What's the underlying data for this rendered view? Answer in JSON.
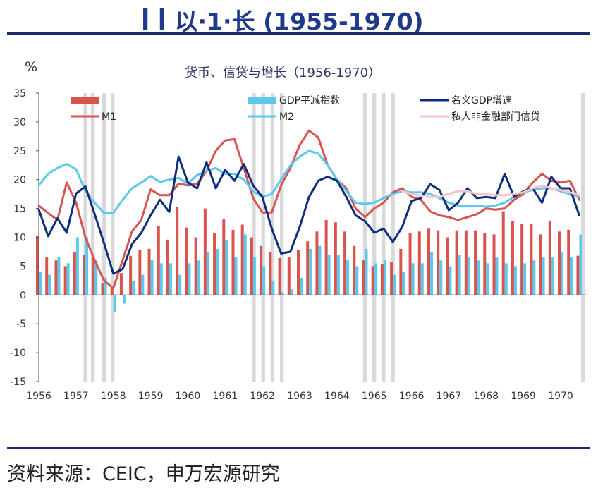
{
  "header": {
    "title_text": "ꟾ ꟾ 以·1·长",
    "title_years": "(1955-1970)"
  },
  "chart_data": {
    "type": "bar",
    "title": "货币、信贷与增长（1956-1970）",
    "ylabel": "%",
    "xlabel": "",
    "ylim": [
      -15,
      35
    ],
    "yticks": [
      35,
      30,
      25,
      20,
      15,
      10,
      5,
      0,
      -5,
      -10,
      -15
    ],
    "x_tick_labels": [
      "1956",
      "1957",
      "1958",
      "1959",
      "1960",
      "1961",
      "1962",
      "1963",
      "1964",
      "1965",
      "1966",
      "1967",
      "1968",
      "1969",
      "1970"
    ],
    "x_range": [
      1956.0,
      1970.7
    ],
    "grid": false,
    "legend_placement": "top",
    "colors": {
      "red": "#d9534f",
      "cyan": "#5bc8ee",
      "navy": "#0d2e7c",
      "pink": "#f6c4c8",
      "shade": "#d9d9d9"
    },
    "shaded_periods": [
      [
        1957.2,
        1957.3
      ],
      [
        1957.4,
        1957.5
      ],
      [
        1957.7,
        1957.8
      ],
      [
        1957.93,
        1958.03
      ],
      [
        1961.72,
        1961.82
      ],
      [
        1961.97,
        1962.07
      ],
      [
        1962.22,
        1962.32
      ],
      [
        1962.47,
        1962.57
      ],
      [
        1964.7,
        1964.8
      ],
      [
        1964.95,
        1965.05
      ],
      [
        1965.2,
        1965.3
      ],
      [
        1965.45,
        1965.55
      ],
      [
        1970.55,
        1970.65
      ]
    ],
    "series": [
      {
        "name": "",
        "kind": "bar",
        "color": "#d9534f",
        "x": [
          1956.0,
          1956.25,
          1956.5,
          1956.75,
          1957.0,
          1957.25,
          1957.5,
          1957.75,
          1958.0,
          1958.25,
          1958.5,
          1958.75,
          1959.0,
          1959.25,
          1959.5,
          1959.75,
          1960.0,
          1960.25,
          1960.5,
          1960.75,
          1961.0,
          1961.25,
          1961.5,
          1961.75,
          1962.0,
          1962.25,
          1962.5,
          1962.75,
          1963.0,
          1963.25,
          1963.5,
          1963.75,
          1964.0,
          1964.25,
          1964.5,
          1964.75,
          1965.0,
          1965.25,
          1965.5,
          1965.75,
          1966.0,
          1966.25,
          1966.5,
          1966.75,
          1967.0,
          1967.25,
          1967.5,
          1967.75,
          1968.0,
          1968.25,
          1968.5,
          1968.75,
          1969.0,
          1969.25,
          1969.5,
          1969.75,
          1970.0,
          1970.25,
          1970.5
        ],
        "values": [
          10.2,
          6.5,
          6.0,
          5.0,
          7.4,
          7.0,
          6.5,
          2.0,
          1.4,
          3.8,
          6.8,
          7.8,
          8.0,
          12.0,
          9.6,
          15.3,
          11.7,
          10.0,
          15.0,
          10.8,
          13.1,
          11.3,
          12.2,
          10.0,
          8.5,
          7.5,
          6.4,
          6.5,
          7.8,
          9.3,
          11.0,
          13.0,
          12.6,
          11.0,
          8.5,
          6.0,
          5.0,
          5.4,
          5.7,
          8.0,
          10.8,
          11.0,
          11.5,
          11.2,
          10.0,
          11.2,
          11.2,
          11.2,
          10.8,
          10.5,
          14.5,
          12.8,
          12.3,
          12.3,
          10.5,
          12.8,
          11.0,
          11.3,
          6.8
        ]
      },
      {
        "name": "GDP平减指数",
        "kind": "bar",
        "color": "#5bc8ee",
        "x": [
          1956.0,
          1956.25,
          1956.5,
          1956.75,
          1957.0,
          1957.25,
          1957.5,
          1957.75,
          1958.0,
          1958.25,
          1958.5,
          1958.75,
          1959.0,
          1959.25,
          1959.5,
          1959.75,
          1960.0,
          1960.25,
          1960.5,
          1960.75,
          1961.0,
          1961.25,
          1961.5,
          1961.75,
          1962.0,
          1962.25,
          1962.5,
          1962.75,
          1963.0,
          1963.25,
          1963.5,
          1963.75,
          1964.0,
          1964.25,
          1964.5,
          1964.75,
          1965.0,
          1965.25,
          1965.5,
          1965.75,
          1966.0,
          1966.25,
          1966.5,
          1966.75,
          1967.0,
          1967.25,
          1967.5,
          1967.75,
          1968.0,
          1968.25,
          1968.5,
          1968.75,
          1969.0,
          1969.25,
          1969.5,
          1969.75,
          1970.0,
          1970.25,
          1970.5
        ],
        "values": [
          4.0,
          3.5,
          6.5,
          5.5,
          10.0,
          10.0,
          6.0,
          3.0,
          -3.0,
          -1.5,
          2.5,
          3.5,
          6.0,
          5.5,
          5.5,
          3.5,
          5.5,
          6.0,
          7.5,
          8.0,
          9.5,
          6.5,
          10.5,
          6.5,
          5.0,
          2.5,
          0.5,
          1.0,
          3.0,
          8.0,
          8.5,
          7.0,
          7.0,
          6.0,
          5.0,
          8.0,
          5.5,
          6.0,
          3.5,
          4.0,
          5.5,
          5.5,
          7.5,
          6.0,
          5.0,
          7.0,
          6.5,
          6.0,
          5.5,
          6.5,
          5.5,
          5.0,
          5.5,
          6.0,
          6.5,
          6.5,
          7.5,
          6.5,
          10.5
        ]
      },
      {
        "name": "M1",
        "kind": "line",
        "color": "#d9534f",
        "x": [
          1956.0,
          1956.25,
          1956.5,
          1956.75,
          1957.0,
          1957.25,
          1957.5,
          1957.75,
          1958.0,
          1958.25,
          1958.5,
          1958.75,
          1959.0,
          1959.25,
          1959.5,
          1959.75,
          1960.0,
          1960.25,
          1960.5,
          1960.75,
          1961.0,
          1961.25,
          1961.5,
          1961.75,
          1962.0,
          1962.25,
          1962.5,
          1962.75,
          1963.0,
          1963.25,
          1963.5,
          1963.75,
          1964.0,
          1964.25,
          1964.5,
          1964.75,
          1965.0,
          1965.25,
          1965.5,
          1965.75,
          1966.0,
          1966.25,
          1966.5,
          1966.75,
          1967.0,
          1967.25,
          1967.5,
          1967.75,
          1968.0,
          1968.25,
          1968.5,
          1968.75,
          1969.0,
          1969.25,
          1969.5,
          1969.75,
          1970.0,
          1970.25,
          1970.5
        ],
        "values": [
          15.5,
          14.2,
          13.0,
          19.5,
          16.0,
          10.0,
          6.0,
          2.5,
          1.2,
          6.0,
          11.0,
          13.0,
          18.3,
          17.3,
          17.3,
          19.3,
          19.0,
          19.3,
          21.5,
          25.0,
          26.8,
          27.0,
          22.0,
          16.8,
          14.3,
          14.3,
          19.0,
          22.0,
          26.0,
          28.5,
          27.3,
          22.5,
          20.0,
          18.5,
          15.0,
          13.5,
          15.0,
          16.0,
          17.8,
          18.5,
          17.0,
          16.5,
          14.5,
          13.8,
          13.5,
          13.0,
          13.5,
          14.0,
          15.0,
          14.8,
          15.0,
          16.5,
          17.5,
          19.5,
          21.0,
          19.8,
          19.5,
          19.8,
          16.5
        ]
      },
      {
        "name": "M2",
        "kind": "line",
        "color": "#5bc8ee",
        "x": [
          1956.0,
          1956.25,
          1956.5,
          1956.75,
          1957.0,
          1957.25,
          1957.5,
          1957.75,
          1958.0,
          1958.25,
          1958.5,
          1958.75,
          1959.0,
          1959.25,
          1959.5,
          1959.75,
          1960.0,
          1960.25,
          1960.5,
          1960.75,
          1961.0,
          1961.25,
          1961.5,
          1961.75,
          1962.0,
          1962.25,
          1962.5,
          1962.75,
          1963.0,
          1963.25,
          1963.5,
          1963.75,
          1964.0,
          1964.25,
          1964.5,
          1964.75,
          1965.0,
          1965.25,
          1965.5,
          1965.75,
          1966.0,
          1966.25,
          1966.5,
          1966.75,
          1967.0,
          1967.25,
          1967.5,
          1967.75,
          1968.0,
          1968.25,
          1968.5,
          1968.75,
          1969.0,
          1969.25,
          1969.5,
          1969.75,
          1970.0,
          1970.25,
          1970.5
        ],
        "values": [
          19.0,
          21.0,
          22.0,
          22.7,
          21.8,
          18.0,
          16.0,
          14.2,
          14.2,
          16.5,
          18.5,
          19.5,
          20.6,
          19.6,
          20.0,
          20.3,
          19.3,
          20.8,
          21.5,
          22.0,
          21.0,
          21.0,
          20.0,
          18.0,
          17.0,
          17.5,
          20.0,
          22.5,
          24.0,
          25.0,
          24.5,
          22.5,
          20.0,
          18.0,
          16.0,
          15.8,
          16.0,
          16.8,
          17.5,
          18.0,
          17.8,
          17.8,
          17.5,
          16.8,
          16.0,
          15.5,
          15.5,
          15.5,
          15.3,
          15.5,
          16.0,
          17.0,
          17.8,
          18.2,
          18.5,
          18.5,
          18.0,
          17.5,
          17.0
        ]
      },
      {
        "name": "名义GDP增速",
        "kind": "line",
        "color": "#0d2e7c",
        "x": [
          1956.0,
          1956.25,
          1956.5,
          1956.75,
          1957.0,
          1957.25,
          1957.5,
          1957.75,
          1958.0,
          1958.25,
          1958.5,
          1958.75,
          1959.0,
          1959.25,
          1959.5,
          1959.75,
          1960.0,
          1960.25,
          1960.5,
          1960.75,
          1961.0,
          1961.25,
          1961.5,
          1961.75,
          1962.0,
          1962.25,
          1962.5,
          1962.75,
          1963.0,
          1963.25,
          1963.5,
          1963.75,
          1964.0,
          1964.25,
          1964.5,
          1964.75,
          1965.0,
          1965.25,
          1965.5,
          1965.75,
          1966.0,
          1966.25,
          1966.5,
          1966.75,
          1967.0,
          1967.25,
          1967.5,
          1967.75,
          1968.0,
          1968.25,
          1968.5,
          1968.75,
          1969.0,
          1969.25,
          1969.5,
          1969.75,
          1970.0,
          1970.25,
          1970.5
        ],
        "values": [
          14.8,
          10.2,
          13.3,
          10.8,
          17.6,
          18.8,
          14.0,
          9.0,
          3.7,
          4.5,
          8.8,
          10.8,
          13.8,
          16.5,
          14.4,
          24.0,
          19.5,
          18.5,
          23.0,
          18.5,
          21.7,
          19.8,
          22.7,
          19.0,
          17.0,
          11.5,
          7.2,
          7.5,
          11.8,
          17.0,
          19.8,
          20.5,
          19.8,
          17.0,
          13.8,
          12.8,
          10.8,
          11.5,
          9.2,
          11.8,
          16.3,
          16.8,
          19.2,
          18.2,
          14.7,
          16.0,
          18.5,
          16.8,
          17.0,
          16.8,
          21.0,
          17.0,
          18.0,
          18.5,
          16.0,
          20.5,
          18.5,
          18.5,
          13.8
        ]
      },
      {
        "name": "私人非金融部门信贷",
        "kind": "line",
        "color": "#f6c4c8",
        "x": [
          1965.75,
          1966.0,
          1966.25,
          1966.5,
          1966.75,
          1967.0,
          1967.25,
          1967.5,
          1967.75,
          1968.0,
          1968.25,
          1968.5,
          1968.75,
          1969.0,
          1969.25,
          1969.5,
          1969.75,
          1970.0,
          1970.25,
          1970.5
        ],
        "values": [
          18.0,
          17.5,
          17.2,
          17.0,
          17.0,
          17.5,
          18.0,
          18.0,
          17.5,
          17.5,
          17.3,
          17.3,
          17.5,
          17.8,
          18.5,
          19.0,
          18.5,
          18.2,
          17.8,
          17.3
        ]
      }
    ]
  },
  "source": "资料来源：CEIC，申万宏源研究"
}
